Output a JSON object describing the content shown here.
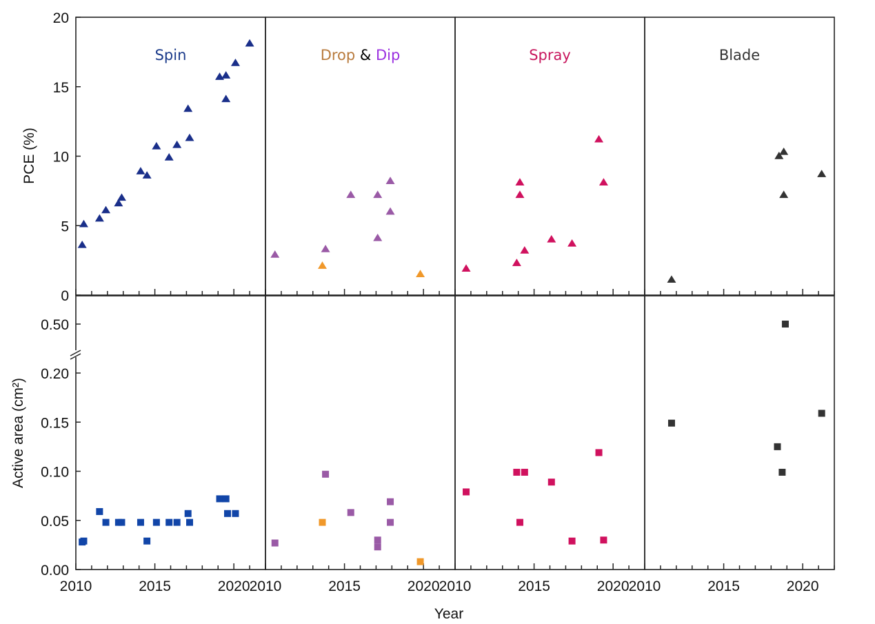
{
  "chart_data": {
    "type": "scatter",
    "title": "",
    "xlabel": "Year",
    "xlim": [
      2010,
      2022
    ],
    "x_ticks": [
      2010,
      2015,
      2020
    ],
    "x_tick_labels": [
      "2010",
      "2015",
      "2020"
    ],
    "x_minor_tick_step": 1,
    "top": {
      "ylabel": "PCE (%)",
      "ylim": [
        0,
        20
      ],
      "y_ticks": [
        0,
        5,
        10,
        15,
        20
      ],
      "y_tick_labels": [
        "0",
        "5",
        "10",
        "15",
        "20"
      ],
      "marker": "triangle"
    },
    "bottom": {
      "ylabel": "Active area (cm²)",
      "ylim_lower": [
        0,
        0.21
      ],
      "ylim_upper_break_value": 0.5,
      "y_ticks": [
        0.0,
        0.05,
        0.1,
        0.15,
        0.2,
        0.5
      ],
      "y_tick_labels": [
        "0.00",
        "0.05",
        "0.10",
        "0.15",
        "0.20",
        "0.50"
      ],
      "axis_break": "between 0.20 and 0.50",
      "marker": "square"
    },
    "grid": false,
    "panels": [
      {
        "name": "Spin",
        "title_parts": [
          {
            "text": "Spin",
            "color": "#1a3a8a"
          }
        ],
        "series": [
          {
            "name": "Spin",
            "color": "#1a2f8a",
            "square_color": "#1145a8",
            "pce": [
              [
                2010.4,
                3.6
              ],
              [
                2010.5,
                5.1
              ],
              [
                2011.5,
                5.5
              ],
              [
                2011.9,
                6.1
              ],
              [
                2012.7,
                6.6
              ],
              [
                2012.9,
                7.0
              ],
              [
                2014.1,
                8.9
              ],
              [
                2014.5,
                8.6
              ],
              [
                2015.1,
                10.7
              ],
              [
                2015.9,
                9.9
              ],
              [
                2016.4,
                10.8
              ],
              [
                2017.1,
                13.4
              ],
              [
                2017.2,
                11.3
              ],
              [
                2019.1,
                15.7
              ],
              [
                2019.5,
                15.8
              ],
              [
                2019.5,
                14.1
              ],
              [
                2020.1,
                16.7
              ],
              [
                2021.0,
                18.1
              ]
            ],
            "area": [
              [
                2010.4,
                0.028
              ],
              [
                2010.5,
                0.029
              ],
              [
                2011.5,
                0.059
              ],
              [
                2011.9,
                0.048
              ],
              [
                2012.7,
                0.048
              ],
              [
                2012.9,
                0.048
              ],
              [
                2014.1,
                0.048
              ],
              [
                2014.5,
                0.029
              ],
              [
                2015.1,
                0.048
              ],
              [
                2015.9,
                0.048
              ],
              [
                2016.4,
                0.048
              ],
              [
                2017.1,
                0.057
              ],
              [
                2017.2,
                0.048
              ],
              [
                2019.1,
                0.072
              ],
              [
                2019.5,
                0.072
              ],
              [
                2019.6,
                0.057
              ],
              [
                2020.1,
                0.057
              ]
            ]
          }
        ]
      },
      {
        "name": "Drop & Dip",
        "title_parts": [
          {
            "text": "Drop",
            "color": "#b87a3c"
          },
          {
            "text": " & ",
            "color": "#000000"
          },
          {
            "text": "Dip",
            "color": "#9b30e0"
          }
        ],
        "series": [
          {
            "name": "Dip",
            "color": "#9a5aa6",
            "square_color": "#9a5aa6",
            "pce": [
              [
                2010.6,
                2.9
              ],
              [
                2013.8,
                3.3
              ],
              [
                2015.4,
                7.2
              ],
              [
                2017.1,
                7.2
              ],
              [
                2017.1,
                4.1
              ],
              [
                2017.9,
                8.2
              ],
              [
                2017.9,
                6.0
              ]
            ],
            "area": [
              [
                2010.6,
                0.027
              ],
              [
                2013.8,
                0.097
              ],
              [
                2015.4,
                0.058
              ],
              [
                2017.1,
                0.03
              ],
              [
                2017.1,
                0.023
              ],
              [
                2017.9,
                0.069
              ],
              [
                2017.9,
                0.048
              ]
            ]
          },
          {
            "name": "Drop",
            "color": "#f0982a",
            "square_color": "#f0982a",
            "pce": [
              [
                2013.6,
                2.1
              ],
              [
                2019.8,
                1.5
              ]
            ],
            "area": [
              [
                2013.6,
                0.048
              ],
              [
                2019.8,
                0.008
              ]
            ]
          }
        ]
      },
      {
        "name": "Spray",
        "title_parts": [
          {
            "text": "Spray",
            "color": "#c8175e"
          }
        ],
        "series": [
          {
            "name": "Spray",
            "color": "#d0115e",
            "square_color": "#d0115e",
            "pce": [
              [
                2010.7,
                1.9
              ],
              [
                2013.9,
                2.3
              ],
              [
                2014.1,
                7.2
              ],
              [
                2014.1,
                8.1
              ],
              [
                2014.4,
                3.2
              ],
              [
                2016.1,
                4.0
              ],
              [
                2017.4,
                3.7
              ],
              [
                2019.1,
                11.2
              ],
              [
                2019.4,
                8.1
              ]
            ],
            "area": [
              [
                2010.7,
                0.079
              ],
              [
                2013.9,
                0.099
              ],
              [
                2014.4,
                0.099
              ],
              [
                2014.1,
                0.048
              ],
              [
                2016.1,
                0.089
              ],
              [
                2017.4,
                0.029
              ],
              [
                2019.1,
                0.119
              ],
              [
                2019.4,
                0.03
              ]
            ]
          }
        ]
      },
      {
        "name": "Blade",
        "title_parts": [
          {
            "text": "Blade",
            "color": "#333333"
          }
        ],
        "series": [
          {
            "name": "Blade",
            "color": "#333333",
            "square_color": "#333333",
            "pce": [
              [
                2011.7,
                1.1
              ],
              [
                2018.5,
                10.0
              ],
              [
                2018.8,
                10.3
              ],
              [
                2018.8,
                7.2
              ],
              [
                2021.2,
                8.7
              ]
            ],
            "area": [
              [
                2011.7,
                0.149
              ],
              [
                2018.4,
                0.125
              ],
              [
                2018.7,
                0.099
              ],
              [
                2018.9,
                0.5
              ],
              [
                2021.2,
                0.159
              ]
            ]
          }
        ]
      }
    ]
  }
}
